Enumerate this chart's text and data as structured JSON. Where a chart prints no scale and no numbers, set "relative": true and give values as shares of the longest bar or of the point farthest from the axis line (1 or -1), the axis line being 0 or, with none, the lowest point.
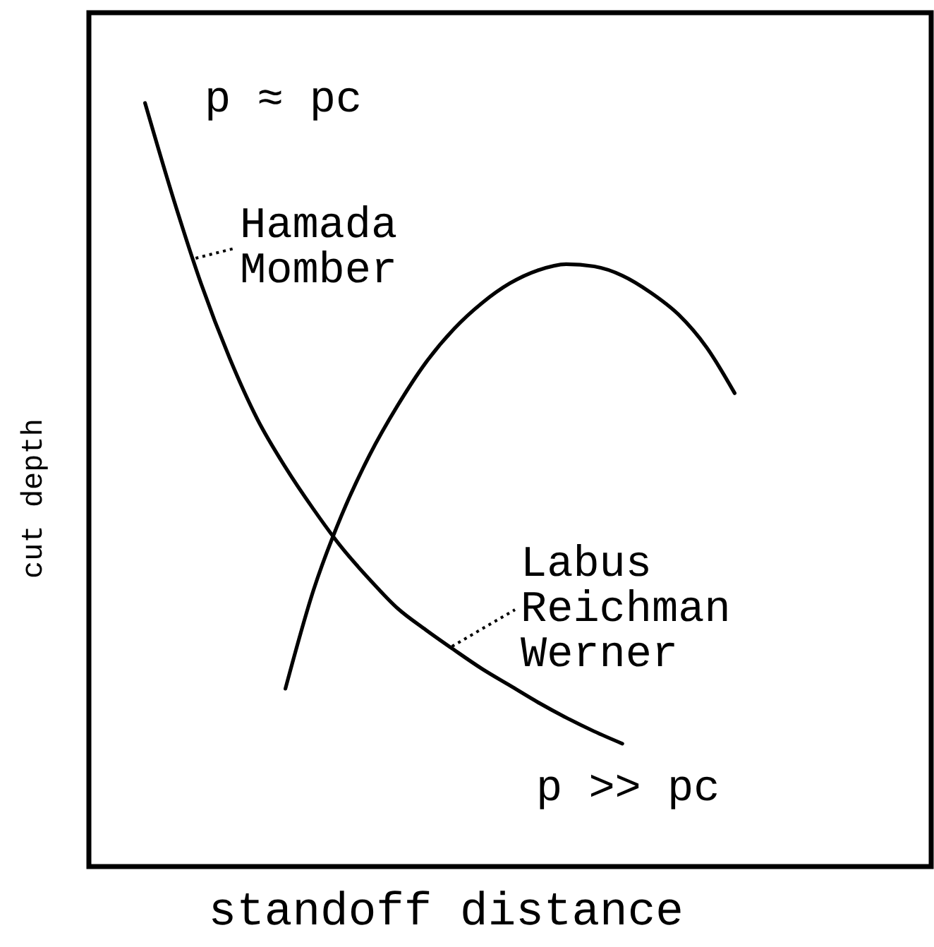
{
  "chart_data": {
    "type": "line",
    "relative": true,
    "xlabel": "standoff distance",
    "ylabel": "cut depth",
    "categories": [
      null,
      null,
      null,
      null,
      null,
      null,
      null,
      null,
      null,
      null,
      null,
      null,
      null,
      null,
      null,
      null,
      null,
      null,
      null,
      null,
      null,
      null,
      null,
      null,
      null,
      null,
      null,
      null,
      null,
      null,
      null
    ],
    "series": [
      {
        "color": "#000000",
        "values": [
          null,
          null,
          1.0,
          0.876,
          0.763,
          0.667,
          0.586,
          0.523,
          0.468,
          0.418,
          0.376,
          0.338,
          0.31,
          0.284,
          0.259,
          0.237,
          0.215,
          0.195,
          0.177,
          0.161,
          null,
          null,
          null,
          null,
          null,
          null,
          null,
          null,
          null,
          null,
          null
        ]
      },
      {
        "color": "#000000",
        "values": [
          null,
          null,
          null,
          null,
          null,
          null,
          null,
          0.233,
          0.362,
          0.46,
          0.539,
          0.604,
          0.66,
          0.704,
          0.738,
          0.764,
          0.781,
          0.789,
          0.786,
          0.774,
          0.752,
          0.723,
          0.68,
          0.62,
          null,
          null,
          null,
          null,
          null,
          null,
          null
        ]
      }
    ],
    "annotations": [
      "p ≈ pc",
      "Hamada Momber",
      "Labus Reichman Werner",
      "p >> pc"
    ]
  }
}
